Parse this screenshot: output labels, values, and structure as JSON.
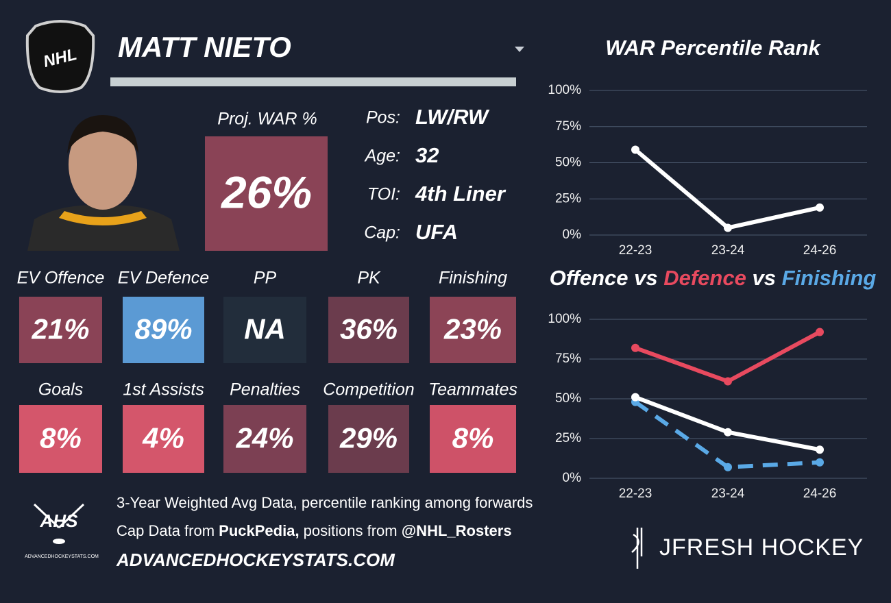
{
  "header": {
    "league": "NHL",
    "name": "MATT NIETO"
  },
  "projection": {
    "label": "Proj. WAR %",
    "value": "26%"
  },
  "info": [
    {
      "label": "Pos:",
      "value": "LW/RW"
    },
    {
      "label": "Age:",
      "value": "32"
    },
    {
      "label": "TOI:",
      "value": "4th Liner"
    },
    {
      "label": "Cap:",
      "value": "UFA"
    }
  ],
  "tiles": [
    [
      {
        "label": "EV Offence",
        "value": "21%",
        "color": "#8a4356"
      },
      {
        "label": "EV Defence",
        "value": "89%",
        "color": "#5b9ad4"
      },
      {
        "label": "PP",
        "value": "NA",
        "color": "#222d3b"
      },
      {
        "label": "PK",
        "value": "36%",
        "color": "#6b3c4d"
      },
      {
        "label": "Finishing",
        "value": "23%",
        "color": "#8c4456"
      }
    ],
    [
      {
        "label": "Goals",
        "value": "8%",
        "color": "#d4566b"
      },
      {
        "label": "1st Assists",
        "value": "4%",
        "color": "#d4566b"
      },
      {
        "label": "Penalties",
        "value": "24%",
        "color": "#7c4053"
      },
      {
        "label": "Competition",
        "value": "29%",
        "color": "#6b3c4d"
      },
      {
        "label": "Teammates",
        "value": "8%",
        "color": "#ce5268"
      }
    ]
  ],
  "chart_data": [
    {
      "type": "line",
      "title": "WAR Percentile Rank",
      "categories": [
        "22-23",
        "23-24",
        "24-26"
      ],
      "series": [
        {
          "color": "#ffffff",
          "values": [
            59,
            5,
            19
          ]
        }
      ],
      "ylim": [
        0,
        100
      ],
      "yticks": [
        {
          "value": 0,
          "label": "0%"
        },
        {
          "value": 25,
          "label": "25%"
        },
        {
          "value": 50,
          "label": "50%"
        },
        {
          "value": 75,
          "label": "75%"
        },
        {
          "value": 100,
          "label": "100%"
        }
      ],
      "grid": true
    },
    {
      "type": "line",
      "title_parts": [
        {
          "text": "Offence",
          "color": "#ffffff"
        },
        {
          "text": "vs",
          "color": "#ffffff"
        },
        {
          "text": "Defence",
          "color": "#e84a5f"
        },
        {
          "text": "vs",
          "color": "#ffffff"
        },
        {
          "text": "Finishing",
          "color": "#5aa9e6"
        }
      ],
      "categories": [
        "22-23",
        "23-24",
        "24-26"
      ],
      "series": [
        {
          "color": "#e84a5f",
          "values": [
            82,
            61,
            92
          ]
        },
        {
          "color": "#5aa9e6",
          "dashed": true,
          "values": [
            48,
            7,
            10
          ]
        },
        {
          "color": "#ffffff",
          "values": [
            51,
            29,
            18
          ]
        }
      ],
      "ylim": [
        0,
        100
      ],
      "yticks": [
        {
          "value": 0,
          "label": "0%"
        },
        {
          "value": 25,
          "label": "25%"
        },
        {
          "value": 50,
          "label": "50%"
        },
        {
          "value": 75,
          "label": "75%"
        },
        {
          "value": 100,
          "label": "100%"
        }
      ],
      "grid": true
    }
  ],
  "footer": {
    "logo_text": "AHS",
    "logo_site": "ADVANCEDHOCKEYSTATS.COM",
    "line1": "3-Year Weighted Avg Data, percentile ranking among forwards",
    "line2": [
      {
        "text": "Cap Data from ",
        "bold": false
      },
      {
        "text": "PuckPedia,",
        "bold": true
      },
      {
        "text": " positions from ",
        "bold": false
      },
      {
        "text": "@NHL_Rosters",
        "bold": true
      }
    ],
    "site": "ADVANCEDHOCKEYSTATS.COM",
    "brand": "JFRESH HOCKEY"
  }
}
